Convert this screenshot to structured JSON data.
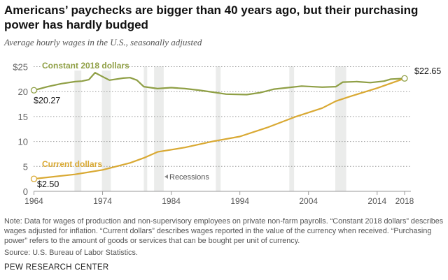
{
  "title": "Americans’ paychecks are bigger than 40 years ago, but their purchasing power has hardly budged",
  "subtitle": "Average hourly wages in the U.S., seasonally adjusted",
  "note": "Note: Data for wages of production and non-supervisory employees on private non-farm payrolls. “Constant 2018 dollars” describes wages adjusted for inflation. “Current dollars” describes wages reported in the value of the currency when received. “Purchasing power” refers to the amount of goods or services that can be bought per unit of currency.",
  "source": "Source: U.S. Bureau of Labor Statistics.",
  "logo": "PEW RESEARCH CENTER",
  "chart_data": {
    "type": "line",
    "xlim": [
      1964,
      2018
    ],
    "ylim": [
      0,
      25
    ],
    "yticks": [
      "0",
      "5",
      "10",
      "15",
      "20",
      "$25"
    ],
    "xticks": [
      "1964",
      "1974",
      "1984",
      "1994",
      "2004",
      "2014",
      "2018"
    ],
    "grid": "horizontal dotted",
    "recessions_label": "Recessions",
    "recessions": [
      [
        1969.9,
        1970.9
      ],
      [
        1973.9,
        1975.2
      ],
      [
        1980.0,
        1980.5
      ],
      [
        1981.5,
        1982.9
      ],
      [
        1990.5,
        1991.2
      ],
      [
        2001.2,
        2001.9
      ],
      [
        2007.9,
        2009.5
      ]
    ],
    "series": [
      {
        "name": "Constant 2018 dollars",
        "color": "#8f9f45",
        "x": [
          1964,
          1966,
          1968,
          1970,
          1971,
          1972,
          1972.9,
          1974,
          1975,
          1977,
          1978,
          1979,
          1980,
          1982,
          1984,
          1986,
          1988,
          1990,
          1992,
          1995,
          1997,
          1999,
          2001,
          2003,
          2006,
          2008,
          2009,
          2011,
          2013,
          2015,
          2016,
          2018
        ],
        "y": [
          20.27,
          21.0,
          21.6,
          22.0,
          22.1,
          22.4,
          23.8,
          23.0,
          22.3,
          22.7,
          22.8,
          22.3,
          21.0,
          20.6,
          20.8,
          20.6,
          20.3,
          19.9,
          19.5,
          19.4,
          19.8,
          20.5,
          20.8,
          21.1,
          20.9,
          21.0,
          21.9,
          22.0,
          21.8,
          22.1,
          22.5,
          22.65
        ],
        "start_label": "$20.27",
        "end_label": "$22.65"
      },
      {
        "name": "Current dollars",
        "color": "#d9a933",
        "x": [
          1964,
          1970,
          1974,
          1978,
          1980,
          1982,
          1986,
          1990,
          1994,
          1998,
          2002,
          2006,
          2008,
          2010,
          2014,
          2018
        ],
        "y": [
          2.5,
          3.4,
          4.3,
          5.7,
          6.7,
          7.9,
          8.8,
          10.0,
          11.0,
          12.8,
          14.9,
          16.7,
          18.1,
          19.0,
          20.7,
          22.65
        ],
        "start_label": "$2.50"
      }
    ]
  }
}
